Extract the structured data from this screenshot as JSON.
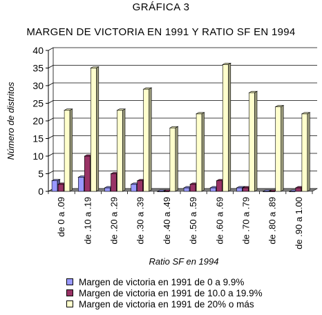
{
  "figure_label": "GRÁFICA 3",
  "chart_title": "MARGEN DE VICTORIA EN 1991 Y RATIO SF EN 1994",
  "chart_data": {
    "type": "bar",
    "title": "MARGEN DE VICTORIA EN 1991 Y RATIO SF EN 1994",
    "xlabel": "Ratio SF en 1994",
    "ylabel": "Número de distritos",
    "ylim": [
      0,
      40
    ],
    "yticks": [
      0,
      5,
      10,
      15,
      20,
      25,
      30,
      35,
      40
    ],
    "grid": true,
    "legend_position": "bottom",
    "categories": [
      "de 0 a .09",
      "de .10 a .19",
      "de .20 a .29",
      "de .30 a .39",
      "de .40 a .49",
      "de .50 a .59",
      "de .60 a .69",
      "de .70 a .79",
      "de .80 a .89",
      "de .90 a 1.00"
    ],
    "series": [
      {
        "name": "Margen de victoria en 1991 de 0 a 9.9%",
        "color": "#9999ff",
        "values": [
          3,
          4,
          1,
          2,
          0,
          1,
          1,
          1,
          0,
          0
        ]
      },
      {
        "name": "Margen de victoria en 1991 de 10.0 a 19.9%",
        "color": "#993366",
        "values": [
          2,
          10,
          5,
          3,
          0,
          2,
          3,
          1,
          0,
          1
        ]
      },
      {
        "name": "Margen de victoria en 1991 de 20% o más",
        "color": "#ffffcc",
        "values": [
          23,
          35,
          23,
          29,
          18,
          22,
          36,
          28,
          24,
          22
        ]
      }
    ]
  }
}
